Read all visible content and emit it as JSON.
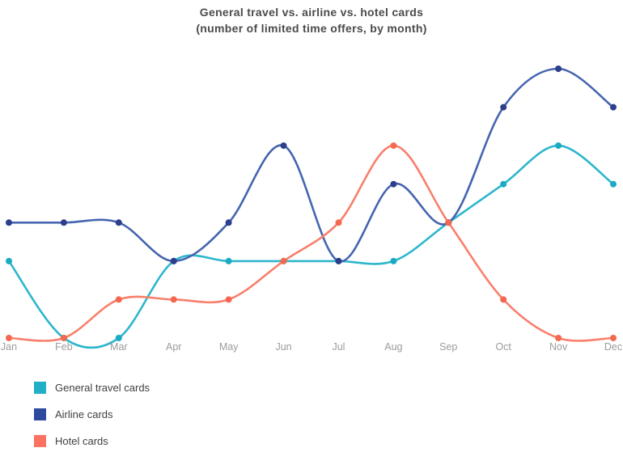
{
  "title": {
    "line1": "General travel vs. airline vs. hotel cards",
    "line2": "(number of limited time offers, by month)"
  },
  "chart_data": {
    "type": "line",
    "title": "General travel vs. airline vs. hotel cards (number of limited time offers, by month)",
    "xlabel": "",
    "ylabel": "",
    "categories": [
      "Jan",
      "Feb",
      "Mar",
      "Apr",
      "May",
      "Jun",
      "Jul",
      "Aug",
      "Sep",
      "Oct",
      "Nov",
      "Dec"
    ],
    "series": [
      {
        "name": "General travel cards",
        "values": [
          2,
          0,
          0,
          2,
          2,
          2,
          2,
          2,
          3,
          4,
          5,
          4
        ],
        "line_color": "#2eb6cc",
        "point_color": "#1ba9c4",
        "legend_color": "#21aec7"
      },
      {
        "name": "Airline cards",
        "values": [
          3,
          3,
          3,
          2,
          3,
          5,
          2,
          4,
          3,
          6,
          7,
          6
        ],
        "line_color": "#4565b0",
        "point_color": "#2c3e8c",
        "legend_color": "#2e4a9f"
      },
      {
        "name": "Hotel cards",
        "values": [
          0,
          0,
          1,
          1,
          1,
          2,
          3,
          5,
          3,
          1,
          0,
          0
        ],
        "line_color": "#f97f6c",
        "point_color": "#f4684f",
        "legend_color": "#f97360"
      }
    ],
    "ylim": [
      0,
      7.5
    ],
    "grid": false,
    "y_axis_shown": false,
    "curve": "smooth",
    "legend_position": "bottom-left",
    "tick_label_color": "#9b9b9b"
  }
}
